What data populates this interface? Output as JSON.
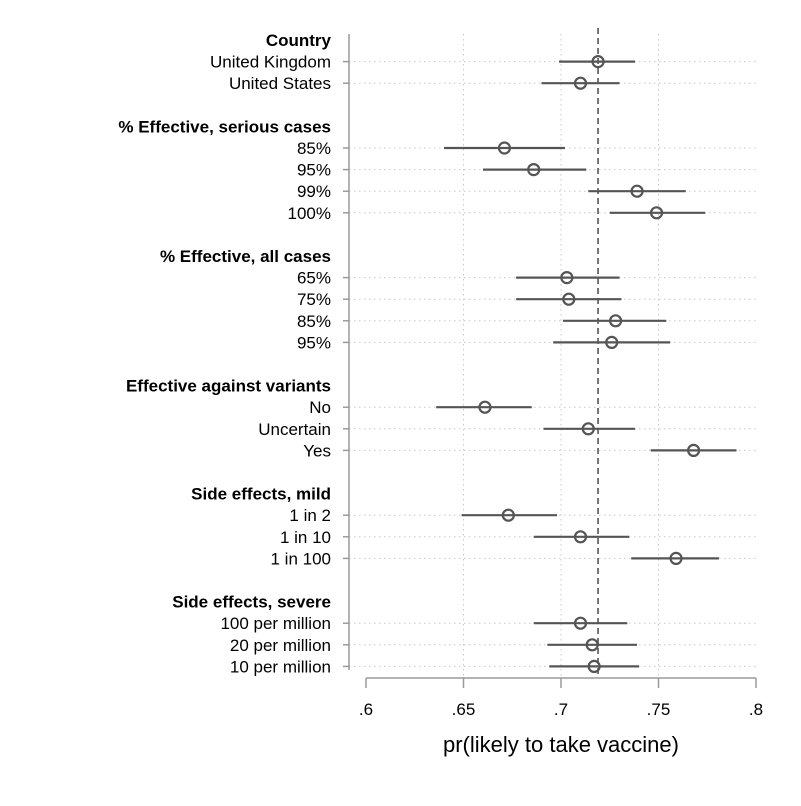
{
  "chart_data": {
    "type": "scatter",
    "subtype": "coefficient-plot-with-confidence-intervals",
    "xlabel": "pr(likely to take vaccine)",
    "xlim": [
      0.6,
      0.8
    ],
    "xticks": [
      {
        "value": 0.6,
        "label": ".6"
      },
      {
        "value": 0.65,
        "label": ".65"
      },
      {
        "value": 0.7,
        "label": ".7"
      },
      {
        "value": 0.75,
        "label": ".75"
      },
      {
        "value": 0.8,
        "label": ".8"
      }
    ],
    "reference_line": 0.719,
    "grid": true,
    "groups": [
      {
        "label": "Country",
        "items": [
          {
            "label": "United Kingdom",
            "estimate": 0.719,
            "ci": [
              0.699,
              0.738
            ]
          },
          {
            "label": "United States",
            "estimate": 0.71,
            "ci": [
              0.69,
              0.73
            ]
          }
        ]
      },
      {
        "label": "% Effective, serious cases",
        "items": [
          {
            "label": "85%",
            "estimate": 0.671,
            "ci": [
              0.64,
              0.702
            ]
          },
          {
            "label": "95%",
            "estimate": 0.686,
            "ci": [
              0.66,
              0.713
            ]
          },
          {
            "label": "99%",
            "estimate": 0.739,
            "ci": [
              0.714,
              0.764
            ]
          },
          {
            "label": "100%",
            "estimate": 0.749,
            "ci": [
              0.725,
              0.774
            ]
          }
        ]
      },
      {
        "label": "% Effective, all cases",
        "items": [
          {
            "label": "65%",
            "estimate": 0.703,
            "ci": [
              0.677,
              0.73
            ]
          },
          {
            "label": "75%",
            "estimate": 0.704,
            "ci": [
              0.677,
              0.731
            ]
          },
          {
            "label": "85%",
            "estimate": 0.728,
            "ci": [
              0.701,
              0.754
            ]
          },
          {
            "label": "95%",
            "estimate": 0.726,
            "ci": [
              0.696,
              0.756
            ]
          }
        ]
      },
      {
        "label": "Effective against variants",
        "items": [
          {
            "label": "No",
            "estimate": 0.661,
            "ci": [
              0.636,
              0.685
            ]
          },
          {
            "label": "Uncertain",
            "estimate": 0.714,
            "ci": [
              0.691,
              0.738
            ]
          },
          {
            "label": "Yes",
            "estimate": 0.768,
            "ci": [
              0.746,
              0.79
            ]
          }
        ]
      },
      {
        "label": "Side effects, mild",
        "items": [
          {
            "label": "1 in 2",
            "estimate": 0.673,
            "ci": [
              0.649,
              0.698
            ]
          },
          {
            "label": "1 in 10",
            "estimate": 0.71,
            "ci": [
              0.686,
              0.735
            ]
          },
          {
            "label": "1 in 100",
            "estimate": 0.759,
            "ci": [
              0.736,
              0.781
            ]
          }
        ]
      },
      {
        "label": "Side effects, severe",
        "items": [
          {
            "label": "100 per million",
            "estimate": 0.71,
            "ci": [
              0.686,
              0.734
            ]
          },
          {
            "label": "20 per million",
            "estimate": 0.716,
            "ci": [
              0.693,
              0.739
            ]
          },
          {
            "label": "10 per million",
            "estimate": 0.717,
            "ci": [
              0.694,
              0.74
            ]
          }
        ]
      }
    ],
    "colors": {
      "marker": "#555555",
      "ci": "#555555",
      "reference_line": "#555555",
      "grid": "#c8c8c8",
      "axis": "#9a9a9a"
    }
  }
}
